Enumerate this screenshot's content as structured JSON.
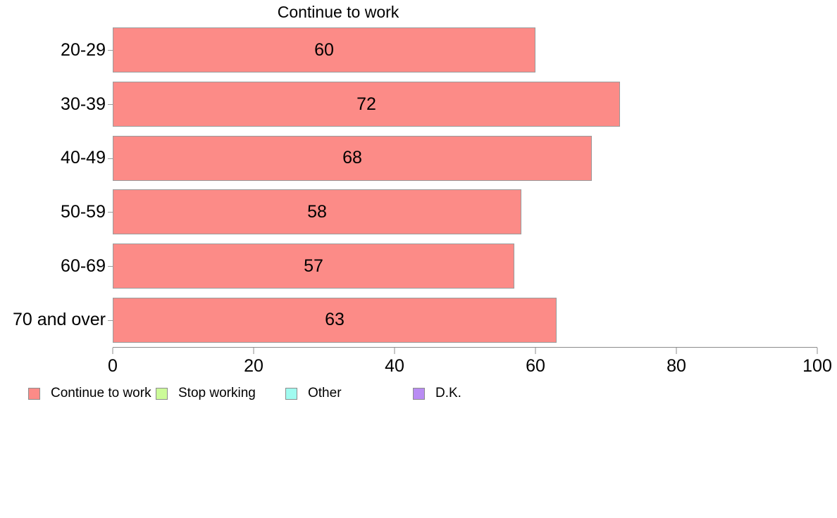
{
  "chart_data": {
    "type": "bar",
    "orientation": "horizontal",
    "title": "Continue to work",
    "categories": [
      "20-29",
      "30-39",
      "40-49",
      "50-59",
      "60-69",
      "70 and over"
    ],
    "values": [
      60,
      72,
      68,
      58,
      57,
      63
    ],
    "xlabel": "",
    "ylabel": "",
    "xlim": [
      0,
      100
    ],
    "x_ticks": [
      "0",
      "20",
      "40",
      "60",
      "80",
      "100"
    ],
    "grid": false,
    "bar_color": "#fc8b87",
    "bar_border_color": "#9a9a9a",
    "value_labels_inside_bars": true,
    "legend_position": "bottom-left",
    "legend": [
      {
        "label": "Continue to work",
        "color": "#fc8b87"
      },
      {
        "label": "Stop working",
        "color": "#ccfb99"
      },
      {
        "label": "Other",
        "color": "#a0fbf0"
      },
      {
        "label": "D.K.",
        "color": "#b98cf3"
      }
    ]
  }
}
